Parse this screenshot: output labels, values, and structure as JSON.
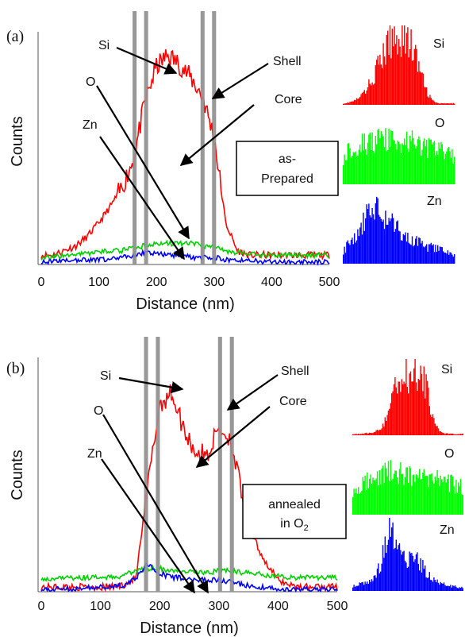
{
  "chart_data": [
    {
      "type": "line",
      "panel_label": "(a)",
      "xlabel": "Distance (nm)",
      "ylabel": "Counts",
      "xlim": [
        0,
        500
      ],
      "x_ticks": [
        0,
        100,
        200,
        300,
        400,
        500
      ],
      "x_tick_labels": [
        "0",
        "100",
        "200",
        "300",
        "400",
        "500"
      ],
      "grid": false,
      "boxed_label": [
        "as-",
        "Prepared"
      ],
      "shell_boundaries_nm": [
        162,
        182,
        280,
        300
      ],
      "annotations": [
        "Si",
        "O",
        "Zn",
        "Shell",
        "Core"
      ],
      "x": [
        0,
        20,
        40,
        60,
        80,
        100,
        120,
        140,
        160,
        180,
        200,
        220,
        240,
        260,
        280,
        300,
        320,
        340,
        360,
        380,
        400,
        420,
        440,
        460,
        480,
        500
      ],
      "series": [
        {
          "name": "Si",
          "color": "#ff0000",
          "values": [
            4,
            4,
            6,
            8,
            12,
            18,
            25,
            33,
            45,
            70,
            85,
            90,
            86,
            80,
            72,
            55,
            18,
            6,
            4,
            4,
            4,
            4,
            4,
            4,
            4,
            4
          ]
        },
        {
          "name": "O",
          "color": "#00d000",
          "values": [
            3,
            3,
            4,
            4,
            5,
            5,
            6,
            6,
            7,
            8,
            9,
            9,
            9,
            9,
            8,
            8,
            6,
            5,
            5,
            4,
            4,
            4,
            4,
            4,
            4,
            4
          ]
        },
        {
          "name": "Zn",
          "color": "#0000ff",
          "values": [
            1,
            1,
            2,
            2,
            2,
            2,
            2,
            3,
            4,
            5,
            5,
            4,
            4,
            3,
            3,
            3,
            2,
            2,
            2,
            1,
            1,
            1,
            1,
            1,
            1,
            1
          ]
        }
      ],
      "insets": [
        {
          "name": "Si",
          "color": "#ff0000",
          "shape": [
            2,
            3,
            5,
            8,
            14,
            22,
            34,
            48,
            62,
            76,
            88,
            95,
            100,
            98,
            92,
            80,
            62,
            40,
            20,
            8,
            3,
            2,
            2,
            2,
            2
          ]
        },
        {
          "name": "O",
          "color": "#00ff00",
          "shape": [
            42,
            50,
            55,
            58,
            60,
            62,
            64,
            63,
            65,
            66,
            65,
            64,
            66,
            63,
            62,
            64,
            60,
            58,
            56,
            54,
            52,
            50,
            48,
            46,
            44
          ]
        },
        {
          "name": "Zn",
          "color": "#0000ff",
          "shape": [
            20,
            28,
            35,
            45,
            60,
            78,
            90,
            82,
            74,
            68,
            62,
            56,
            50,
            44,
            40,
            36,
            32,
            28,
            26,
            24,
            22,
            20,
            18,
            16,
            14
          ]
        }
      ]
    },
    {
      "type": "line",
      "panel_label": "(b)",
      "xlabel": "Distance (nm)",
      "ylabel": "Counts",
      "xlim": [
        0,
        500
      ],
      "x_ticks": [
        0,
        100,
        200,
        300,
        400,
        500
      ],
      "x_tick_labels": [
        "0",
        "100",
        "200",
        "300",
        "400",
        "500"
      ],
      "grid": false,
      "boxed_label": [
        "annealed",
        "in O",
        "2"
      ],
      "shell_boundaries_nm": [
        177,
        197,
        302,
        322
      ],
      "annotations": [
        "Si",
        "O",
        "Zn",
        "Shell",
        "Core"
      ],
      "x": [
        0,
        20,
        40,
        60,
        80,
        100,
        120,
        140,
        160,
        180,
        200,
        220,
        240,
        260,
        280,
        300,
        320,
        340,
        360,
        380,
        400,
        420,
        440,
        460,
        480,
        500
      ],
      "series": [
        {
          "name": "Si",
          "color": "#ff0000",
          "values": [
            2,
            2,
            2,
            2,
            2,
            2,
            2,
            3,
            6,
            45,
            80,
            85,
            70,
            60,
            58,
            70,
            65,
            40,
            22,
            12,
            5,
            3,
            2,
            2,
            2,
            2
          ]
        },
        {
          "name": "O",
          "color": "#00d000",
          "values": [
            6,
            5,
            6,
            6,
            6,
            6,
            6,
            7,
            9,
            10,
            10,
            9,
            9,
            8,
            8,
            9,
            9,
            8,
            8,
            7,
            7,
            6,
            6,
            6,
            6,
            6
          ]
        },
        {
          "name": "Zn",
          "color": "#0000ff",
          "values": [
            1,
            1,
            1,
            1,
            2,
            2,
            2,
            3,
            6,
            12,
            8,
            6,
            6,
            5,
            5,
            5,
            4,
            3,
            2,
            2,
            1,
            1,
            1,
            1,
            1,
            1
          ]
        }
      ],
      "insets": [
        {
          "name": "Si",
          "color": "#ff0000",
          "shape": [
            2,
            2,
            2,
            3,
            4,
            6,
            10,
            20,
            45,
            78,
            92,
            95,
            88,
            90,
            96,
            92,
            70,
            40,
            15,
            6,
            3,
            2,
            2,
            2,
            2
          ]
        },
        {
          "name": "O",
          "color": "#00ff00",
          "shape": [
            38,
            42,
            46,
            50,
            52,
            56,
            60,
            62,
            66,
            68,
            66,
            64,
            66,
            62,
            60,
            62,
            58,
            56,
            54,
            52,
            50,
            48,
            46,
            44,
            42
          ]
        },
        {
          "name": "Zn",
          "color": "#0000ff",
          "shape": [
            8,
            10,
            12,
            14,
            18,
            26,
            40,
            70,
            95,
            80,
            62,
            55,
            50,
            54,
            48,
            40,
            30,
            22,
            16,
            12,
            10,
            8,
            7,
            6,
            6
          ]
        }
      ]
    }
  ]
}
